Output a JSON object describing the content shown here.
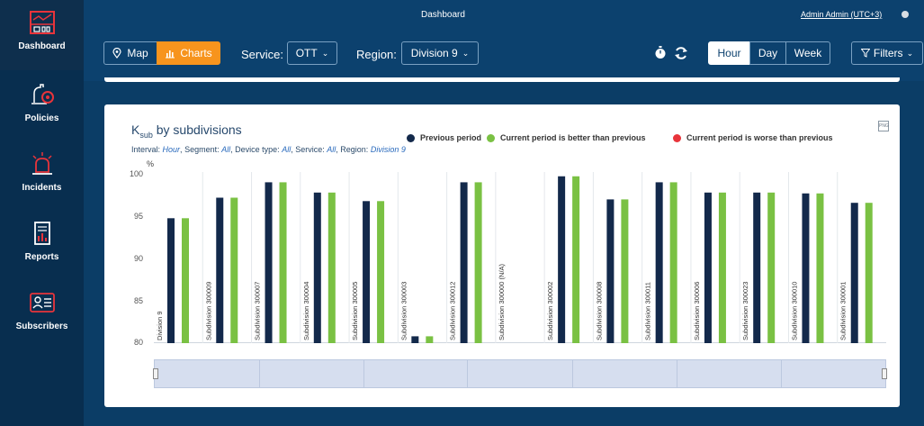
{
  "sidebar": {
    "items": [
      {
        "label": "Dashboard",
        "icon": "dashboard-icon",
        "active": true
      },
      {
        "label": "Policies",
        "icon": "policies-icon"
      },
      {
        "label": "Incidents",
        "icon": "incidents-icon"
      },
      {
        "label": "Reports",
        "icon": "reports-icon"
      },
      {
        "label": "Subscribers",
        "icon": "subscribers-icon"
      }
    ]
  },
  "header": {
    "title": "Dashboard",
    "user": "Admin Admin (UTC+3)"
  },
  "toolbar": {
    "map_label": "Map",
    "charts_label": "Charts",
    "service_label": "Service:",
    "service_value": "OTT",
    "region_label": "Region:",
    "region_value": "Division 9",
    "hour_label": "Hour",
    "day_label": "Day",
    "week_label": "Week",
    "filters_label": "Filters",
    "active_period": "Hour"
  },
  "colors": {
    "previous": "#13294b",
    "better": "#7ac143",
    "worse": "#e8343b",
    "accent": "#f7941d"
  },
  "chart_card": {
    "title_main": "K",
    "title_sub": "sub",
    "title_rest": " by subdivisions",
    "subtitle_parts": {
      "interval_label": "Interval:",
      "interval": "Hour",
      "segment_label": "Segment:",
      "segment": "All",
      "device_label": "Device type:",
      "device": "All",
      "service_label": "Service:",
      "service": "All",
      "region_label": "Region:",
      "region": "Division 9"
    },
    "legend": {
      "previous": "Previous period",
      "better": "Current period is better than previous",
      "worse": "Current period is worse than previous"
    },
    "unit": "%",
    "export_label": "PNG"
  },
  "chart_data": {
    "type": "bar",
    "ylim": [
      80,
      100
    ],
    "yticks": [
      80,
      85,
      90,
      95,
      100
    ],
    "grid": false,
    "legend_position": "top",
    "categories": [
      "Division 9",
      "Subdivision 300009",
      "Subdivision 300007",
      "Subdivision 300004",
      "Subdivision 300005",
      "Subdivision 300003",
      "Subdivision 300012",
      "Subdivision 300000 (N/A)",
      "Subdivision 300002",
      "Subdivision 300008",
      "Subdivision 300011",
      "Subdivision 300006",
      "Subdivision 300023",
      "Subdivision 300010",
      "Subdivision 300001"
    ],
    "series": [
      {
        "name": "Previous period",
        "values": [
          94.6,
          97.0,
          98.8,
          97.6,
          96.6,
          80.8,
          98.8,
          null,
          99.5,
          96.8,
          98.8,
          97.6,
          97.6,
          97.5,
          96.4
        ]
      },
      {
        "name": "Current period is better than previous",
        "values": [
          94.6,
          97.0,
          98.8,
          97.6,
          96.6,
          80.8,
          98.8,
          null,
          99.5,
          96.8,
          98.8,
          97.6,
          97.6,
          97.5,
          96.4
        ]
      }
    ]
  }
}
